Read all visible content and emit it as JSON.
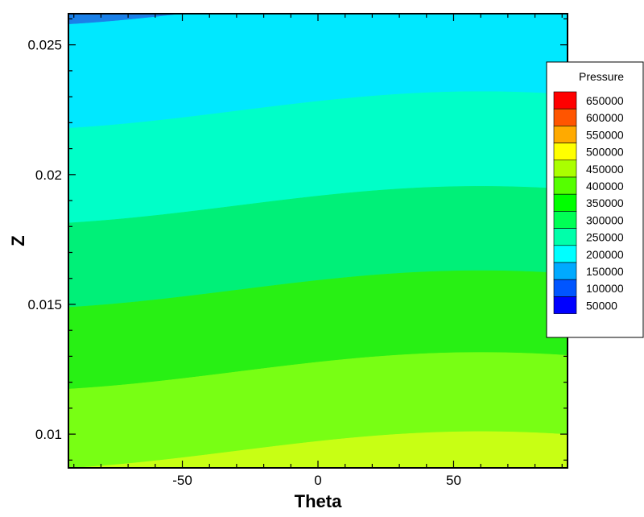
{
  "chart_data": {
    "type": "contour",
    "xlabel": "Theta",
    "ylabel": "Z",
    "xlim": [
      -92,
      92
    ],
    "ylim": [
      0.0087,
      0.0262
    ],
    "x_ticks": [
      {
        "value": -50,
        "label": "-50"
      },
      {
        "value": 0,
        "label": "0"
      },
      {
        "value": 50,
        "label": "50"
      }
    ],
    "y_ticks": [
      {
        "value": 0.01,
        "label": "0.01"
      },
      {
        "value": 0.015,
        "label": "0.015"
      },
      {
        "value": 0.02,
        "label": "0.02"
      },
      {
        "value": 0.025,
        "label": "0.025"
      }
    ],
    "legend": {
      "title": "Pressure",
      "position": "right",
      "levels": [
        {
          "value": 650000,
          "label": "650000",
          "color": "#ff0000"
        },
        {
          "value": 600000,
          "label": "600000",
          "color": "#ff5500"
        },
        {
          "value": 550000,
          "label": "550000",
          "color": "#ffaa00"
        },
        {
          "value": 500000,
          "label": "500000",
          "color": "#ffff00"
        },
        {
          "value": 450000,
          "label": "450000",
          "color": "#aaff00"
        },
        {
          "value": 400000,
          "label": "400000",
          "color": "#55ff00"
        },
        {
          "value": 350000,
          "label": "350000",
          "color": "#00ff00"
        },
        {
          "value": 300000,
          "label": "300000",
          "color": "#00ff55"
        },
        {
          "value": 250000,
          "label": "250000",
          "color": "#00ffaa"
        },
        {
          "value": 200000,
          "label": "200000",
          "color": "#00ffff"
        },
        {
          "value": 150000,
          "label": "150000",
          "color": "#00aaff"
        },
        {
          "value": 100000,
          "label": "100000",
          "color": "#0055ff"
        },
        {
          "value": 50000,
          "label": "50000",
          "color": "#0000ff"
        }
      ]
    },
    "contour_boundaries": [
      {
        "pressure": 150000,
        "z_mean": 0.02645,
        "amplitude": 0.00075,
        "phase_deg": 60
      },
      {
        "pressure": 200000,
        "z_mean": 0.02245,
        "amplitude": 0.00075,
        "phase_deg": 60
      },
      {
        "pressure": 250000,
        "z_mean": 0.0188,
        "amplitude": 0.00075,
        "phase_deg": 60
      },
      {
        "pressure": 300000,
        "z_mean": 0.01555,
        "amplitude": 0.00075,
        "phase_deg": 60
      },
      {
        "pressure": 350000,
        "z_mean": 0.0124,
        "amplitude": 0.00075,
        "phase_deg": 60
      },
      {
        "pressure": 400000,
        "z_mean": 0.00935,
        "amplitude": 0.00075,
        "phase_deg": 60
      }
    ],
    "bands": [
      {
        "pressure_low": 100000,
        "pressure_high": 150000,
        "color": "#1a80e8"
      },
      {
        "pressure_low": 150000,
        "pressure_high": 200000,
        "color": "#00e8ff"
      },
      {
        "pressure_low": 200000,
        "pressure_high": 250000,
        "color": "#00ffc8"
      },
      {
        "pressure_low": 250000,
        "pressure_high": 300000,
        "color": "#00f078"
      },
      {
        "pressure_low": 300000,
        "pressure_high": 350000,
        "color": "#28f014"
      },
      {
        "pressure_low": 350000,
        "pressure_high": 400000,
        "color": "#78ff14"
      },
      {
        "pressure_low": 400000,
        "pressure_high": 450000,
        "color": "#c8ff14"
      }
    ],
    "grid": false
  }
}
